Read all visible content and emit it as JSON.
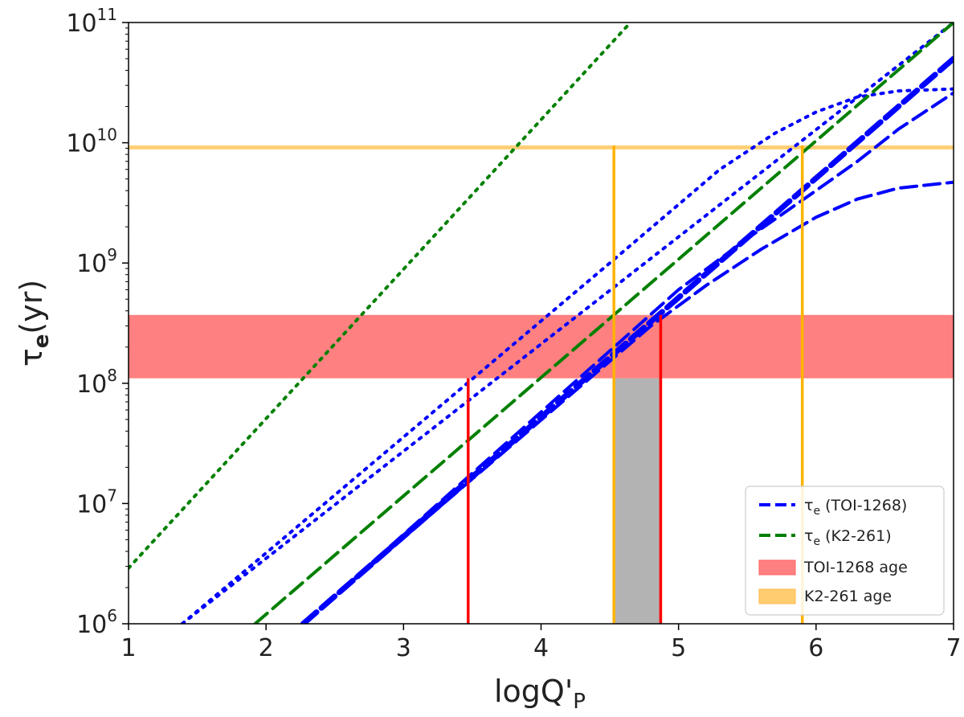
{
  "chart_data": {
    "type": "line",
    "xlabel_main": "logQ'",
    "xlabel_sub": "P",
    "ylabel_main": "τ",
    "ylabel_sub": "e",
    "ylabel_unit": "(yr)",
    "x_ticks": [
      1,
      2,
      3,
      4,
      5,
      6,
      7
    ],
    "y_ticks": [
      {
        "base": "10",
        "exp": "6",
        "value": 1000000
      },
      {
        "base": "10",
        "exp": "7",
        "value": 10000000
      },
      {
        "base": "10",
        "exp": "8",
        "value": 100000000
      },
      {
        "base": "10",
        "exp": "9",
        "value": 1000000000
      },
      {
        "base": "10",
        "exp": "10",
        "value": 10000000000
      },
      {
        "base": "10",
        "exp": "11",
        "value": 100000000000
      }
    ],
    "xlim": [
      1,
      7
    ],
    "ylim": [
      1000000,
      100000000000
    ],
    "yscale": "log",
    "colors": {
      "toi_curve": "#0000ff",
      "k2_curve": "#008000",
      "toi_band": "#ff8080",
      "k2_band": "#ffcc70",
      "red_marker": "#ff0000",
      "orange_marker": "#ffb300",
      "gray_region": "#b3b3b3"
    },
    "series": [
      {
        "legend": "toi",
        "style": "dotted",
        "x": [
          1.39,
          7.0
        ],
        "y": [
          1000000,
          100000000000
        ]
      },
      {
        "legend": "toi",
        "style": "dashed-thick",
        "x": [
          2.27,
          7.0
        ],
        "y": [
          1000000,
          50000000000
        ]
      },
      {
        "legend": "toi",
        "style": "dotted",
        "x": [
          1.39,
          4.5,
          5.3,
          5.7,
          6.0,
          6.3,
          6.6,
          7.0
        ],
        "y": [
          1000000,
          1000000000,
          6000000000,
          12000000000,
          18000000000,
          24000000000,
          27000000000,
          28000000000
        ]
      },
      {
        "legend": "toi",
        "style": "dashed",
        "x": [
          2.27,
          5.0,
          5.5,
          6.0,
          6.3,
          6.6,
          7.0
        ],
        "y": [
          1000000,
          600000000,
          1600000000,
          4000000000,
          7000000000,
          13000000000,
          26000000000
        ]
      },
      {
        "legend": "toi",
        "style": "dashed",
        "x": [
          2.27,
          4.8,
          5.2,
          5.6,
          6.0,
          6.3,
          6.6,
          7.0
        ],
        "y": [
          1000000,
          300000000,
          650000000,
          1300000000,
          2400000000,
          3400000000,
          4200000000,
          4700000000
        ]
      },
      {
        "legend": "k2",
        "style": "dotted",
        "x": [
          1.0,
          4.65
        ],
        "y": [
          2900000,
          100000000000
        ]
      },
      {
        "legend": "k2",
        "style": "dashed",
        "x": [
          1.92,
          7.0
        ],
        "y": [
          1000000,
          100000000000
        ]
      }
    ],
    "bands": [
      {
        "legend": "toi_band",
        "y": [
          110000000,
          370000000
        ]
      },
      {
        "legend": "k2_band",
        "y": [
          8800000000,
          9500000000
        ]
      }
    ],
    "markers": [
      {
        "color": "red",
        "x": 3.47,
        "y_top": 110000000
      },
      {
        "color": "red",
        "x": 4.87,
        "y_top": 370000000
      },
      {
        "color": "orange",
        "x": 4.53,
        "y_top": 9500000000
      },
      {
        "color": "orange",
        "x": 5.9,
        "y_top": 9500000000
      }
    ],
    "shaded_region": {
      "x": [
        4.53,
        4.87
      ],
      "y": [
        1000000,
        110000000
      ]
    },
    "legend": {
      "position": "lower-right",
      "entries": [
        {
          "key": "toi",
          "sym": "τ",
          "sub": "e",
          "rest": " (TOI-1268)"
        },
        {
          "key": "k2",
          "sym": "τ",
          "sub": "e",
          "rest": " (K2-261)"
        },
        {
          "key": "toi_band",
          "label": "TOI-1268 age"
        },
        {
          "key": "k2_band",
          "label": "K2-261 age"
        }
      ]
    }
  }
}
